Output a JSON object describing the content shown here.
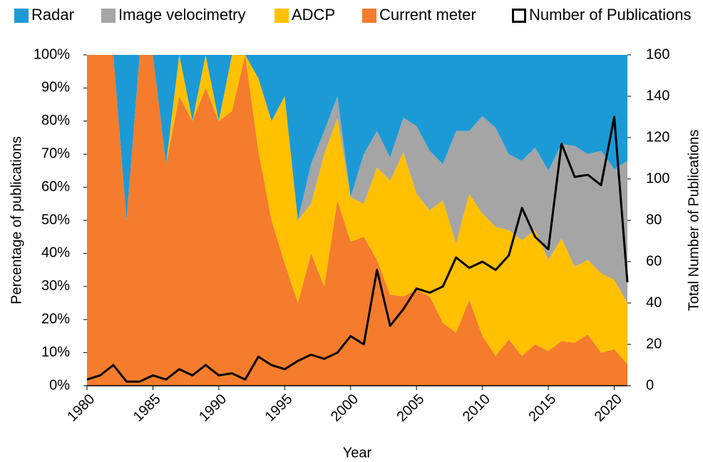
{
  "chart_data": {
    "type": "area",
    "stacked": true,
    "x_label": "Year",
    "y_label": "Percentage of publications",
    "y2_label": "Total Number of Publications",
    "x": [
      1980,
      1981,
      1982,
      1983,
      1984,
      1985,
      1986,
      1987,
      1988,
      1989,
      1990,
      1991,
      1992,
      1993,
      1994,
      1995,
      1996,
      1997,
      1998,
      1999,
      2000,
      2001,
      2002,
      2003,
      2004,
      2005,
      2006,
      2007,
      2008,
      2009,
      2010,
      2011,
      2012,
      2013,
      2014,
      2015,
      2016,
      2017,
      2018,
      2019,
      2020,
      2021
    ],
    "series": [
      {
        "name": "Radar",
        "color": "#1c9ad6",
        "values": [
          0,
          0,
          0,
          50,
          0,
          0,
          33,
          0,
          20,
          0,
          20,
          0,
          0,
          7,
          20,
          12.5,
          50,
          33,
          23,
          12.5,
          43,
          30,
          23,
          31,
          19,
          21.5,
          29,
          33,
          23,
          23,
          18.5,
          22,
          30,
          32,
          28,
          35,
          27,
          27.5,
          30,
          29,
          34.5,
          32
        ]
      },
      {
        "name": "Image velocimetry",
        "color": "#a5a5a5",
        "values": [
          0,
          0,
          0,
          0,
          0,
          0,
          0,
          0,
          0,
          0,
          0,
          0,
          0,
          0,
          0,
          0,
          0,
          12,
          7,
          6.5,
          0,
          15,
          11,
          7,
          10.5,
          20.5,
          18,
          11,
          34,
          19,
          29.5,
          30,
          23,
          24,
          25,
          27,
          28.5,
          36.5,
          32,
          37,
          33.5,
          43
        ]
      },
      {
        "name": "ADCP",
        "color": "#ffc000",
        "values": [
          0,
          0,
          0,
          0,
          0,
          0,
          0,
          12.5,
          0,
          10,
          0,
          17,
          0,
          22,
          30,
          50.5,
          25,
          15,
          40,
          25,
          13.5,
          10,
          28,
          34.5,
          43.5,
          29,
          26,
          37,
          27,
          32,
          37,
          39,
          33,
          35,
          34.5,
          27.5,
          31,
          23,
          22.5,
          24,
          21,
          18.5
        ]
      },
      {
        "name": "Current meter",
        "color": "#f47c2c",
        "values": [
          100,
          100,
          100,
          50,
          100,
          100,
          67,
          87.5,
          80,
          90,
          80,
          83,
          100,
          71,
          50,
          37,
          25,
          40,
          30,
          56,
          43.5,
          45,
          38,
          27.5,
          27,
          29,
          27,
          19,
          16,
          26,
          15,
          9,
          14,
          9,
          12.5,
          10.5,
          13.5,
          13,
          15.5,
          10,
          11,
          6.5
        ]
      },
      {
        "name": "Number of Publications",
        "color": "#000000",
        "type": "line",
        "axis": "y2",
        "values": [
          3,
          5,
          10,
          2,
          2,
          5,
          3,
          8,
          5,
          10,
          5,
          6,
          3,
          14,
          10,
          8,
          12,
          15,
          13,
          16,
          24,
          20,
          56,
          29,
          37,
          47,
          45,
          48,
          62,
          57,
          60,
          56,
          63,
          86,
          72,
          66,
          117,
          101,
          102,
          97,
          130,
          50
        ]
      }
    ],
    "xlim": [
      1980,
      2021
    ],
    "xticks": [
      1980,
      1985,
      1990,
      1995,
      2000,
      2005,
      2010,
      2015,
      2020
    ],
    "ylim": [
      0,
      100
    ],
    "yticks": [
      {
        "value": 0,
        "label": "0%"
      },
      {
        "value": 10,
        "label": "10%"
      },
      {
        "value": 20,
        "label": "20%"
      },
      {
        "value": 30,
        "label": "30%"
      },
      {
        "value": 40,
        "label": "40%"
      },
      {
        "value": 50,
        "label": "50%"
      },
      {
        "value": 60,
        "label": "60%"
      },
      {
        "value": 70,
        "label": "70%"
      },
      {
        "value": 80,
        "label": "80%"
      },
      {
        "value": 90,
        "label": "90%"
      },
      {
        "value": 100,
        "label": "100%"
      }
    ],
    "y2lim": [
      0,
      160
    ],
    "y2ticks": [
      0,
      20,
      40,
      60,
      80,
      100,
      120,
      140,
      160
    ],
    "grid": false,
    "legend": "top"
  }
}
